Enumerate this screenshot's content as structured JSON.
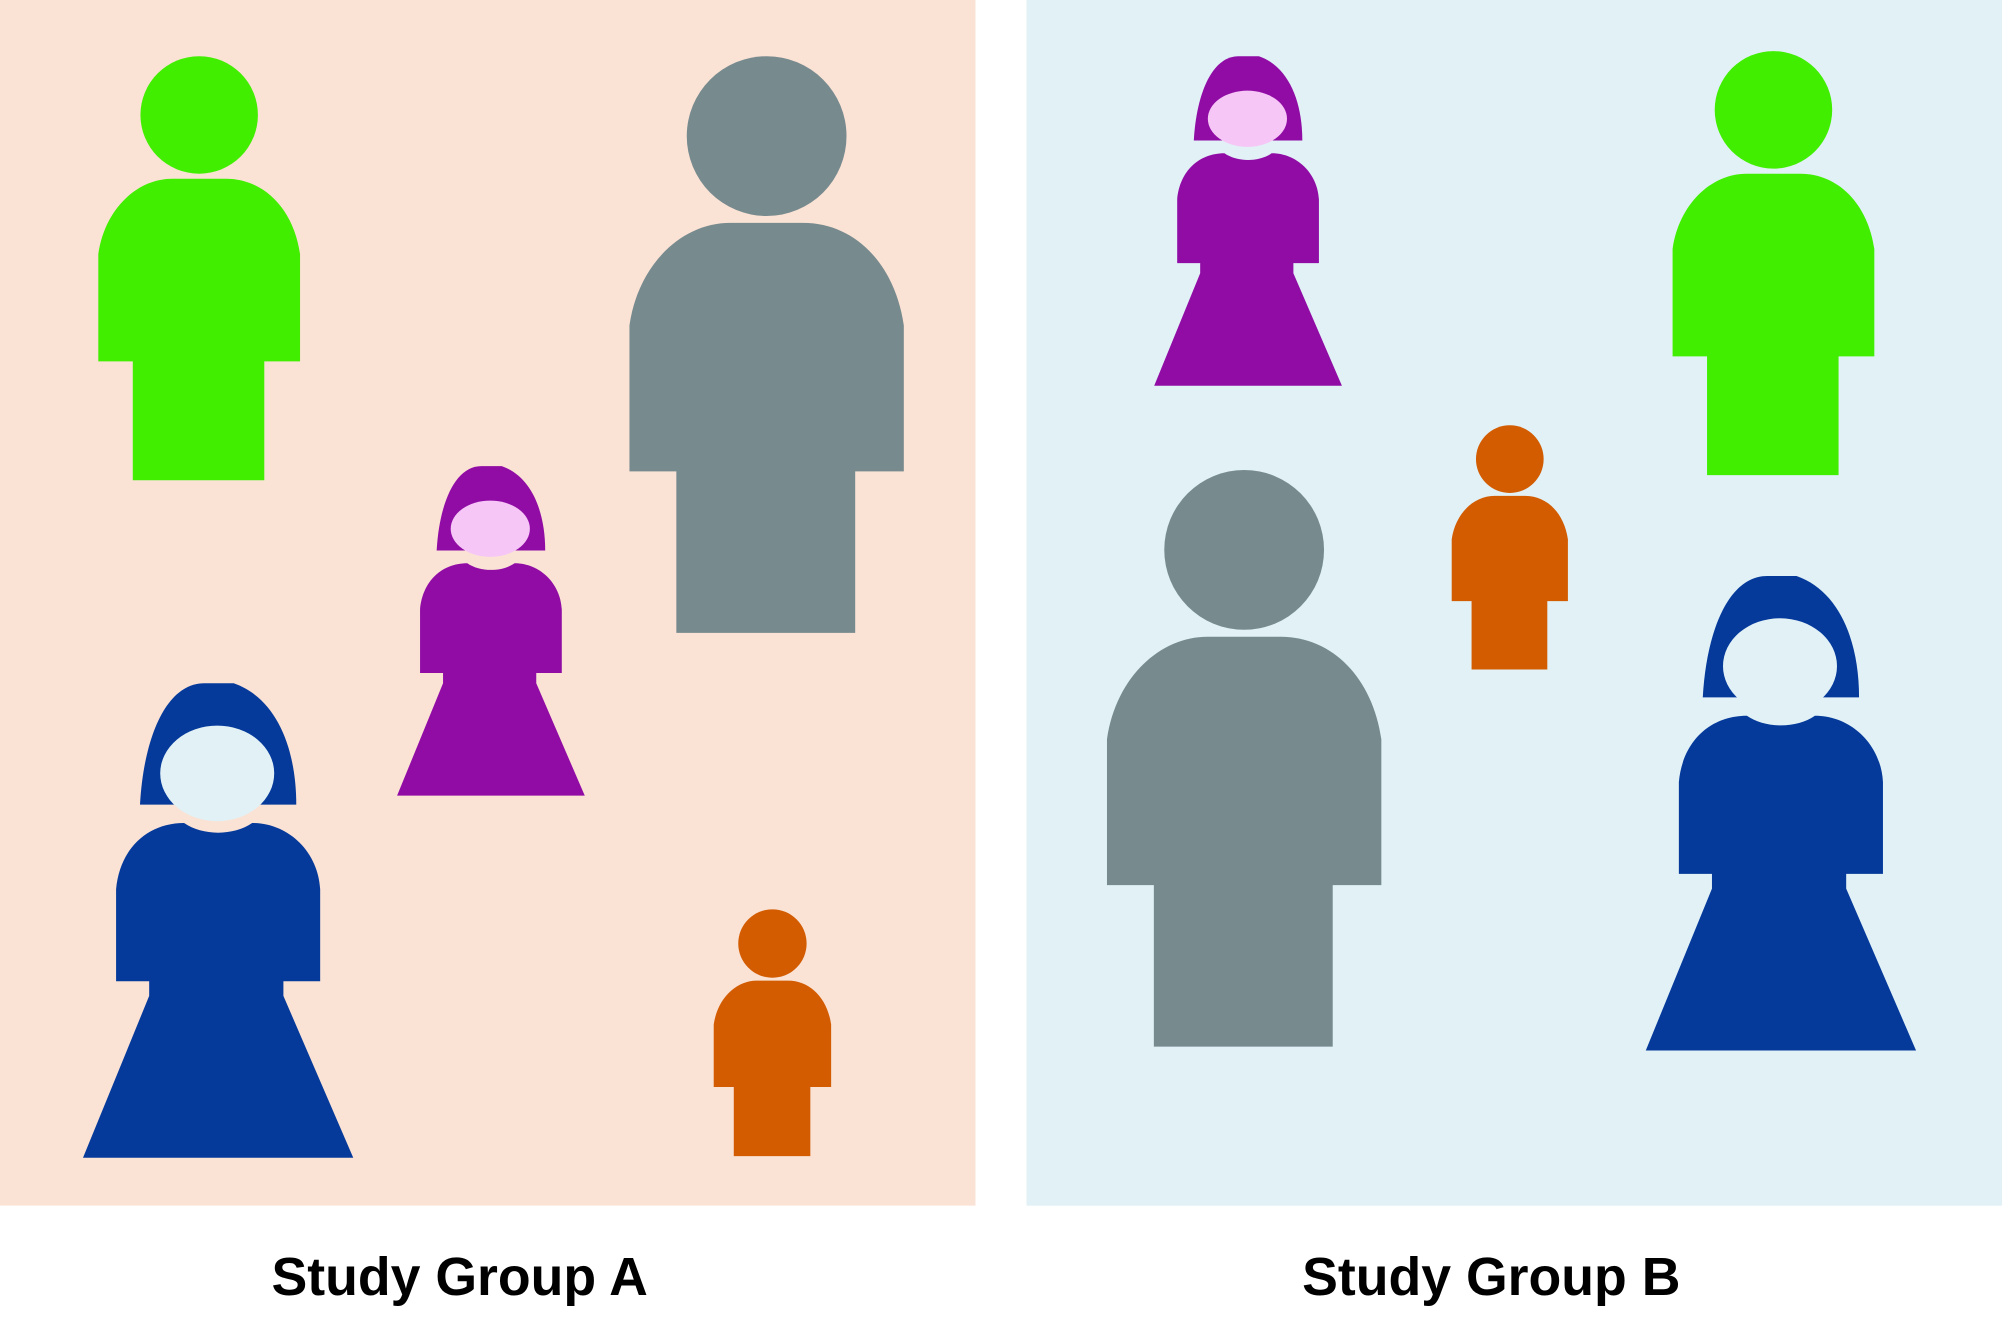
{
  "panels": [
    {
      "label": "Study Group A"
    },
    {
      "label": "Study Group B"
    }
  ]
}
